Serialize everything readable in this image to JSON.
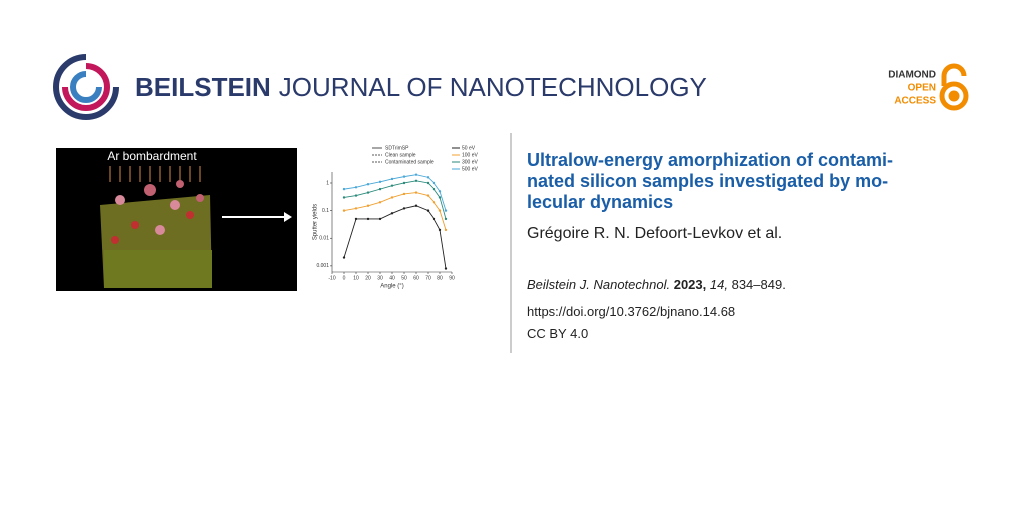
{
  "header": {
    "journal_bold": "BEILSTEIN",
    "journal_rest": "JOURNAL OF NANOTECHNOLOGY",
    "badge": [
      "DIAMOND",
      "OPEN",
      "ACCESS"
    ]
  },
  "graphical_abstract": {
    "image_caption": "Ar bombardment",
    "chart": {
      "type": "line",
      "x_label": "Angle (°)",
      "y_label": "Sputter yields",
      "log_y": true,
      "style_legend": [
        "SDTrimSP",
        "Clean sample",
        "Contaminated sample"
      ],
      "x": [
        0,
        10,
        20,
        30,
        40,
        50,
        60,
        70,
        75,
        80,
        85
      ],
      "series": [
        {
          "name": "50 eV",
          "color": "#222222",
          "values": [
            0.002,
            0.05,
            0.05,
            0.05,
            0.08,
            0.12,
            0.15,
            0.1,
            0.05,
            0.02,
            0.0008
          ]
        },
        {
          "name": "100 eV",
          "color": "#f0a030",
          "values": [
            0.1,
            0.12,
            0.15,
            0.2,
            0.3,
            0.4,
            0.45,
            0.35,
            0.2,
            0.1,
            0.02
          ]
        },
        {
          "name": "300 eV",
          "color": "#2a8a7a",
          "values": [
            0.3,
            0.35,
            0.45,
            0.6,
            0.8,
            1,
            1.2,
            1,
            0.6,
            0.3,
            0.05
          ]
        },
        {
          "name": "500 eV",
          "color": "#4aa8d8",
          "values": [
            0.6,
            0.7,
            0.9,
            1.1,
            1.4,
            1.7,
            2,
            1.6,
            1,
            0.5,
            0.1
          ]
        }
      ],
      "xlim": [
        -10,
        90
      ],
      "xticks": [
        -10,
        0,
        10,
        20,
        30,
        40,
        50,
        60,
        70,
        80,
        90
      ],
      "ylim": [
        0.0006,
        2.5
      ],
      "yticks": [
        0.001,
        0.01,
        0.1,
        1
      ]
    }
  },
  "article": {
    "title_lines": [
      "Ultralow-energy amorphization of contami-",
      "nated silicon samples investigated by mo-",
      "lecular dynamics"
    ],
    "authors": "Grégoire R. N. Defoort-Levkov et al.",
    "citation": {
      "journal": "Beilstein J. Nanotechnol.",
      "year": "2023,",
      "volume": "14,",
      "pages": "834–849."
    },
    "doi": "https://doi.org/10.3762/bjnano.14.68",
    "license": "CC BY 4.0"
  }
}
